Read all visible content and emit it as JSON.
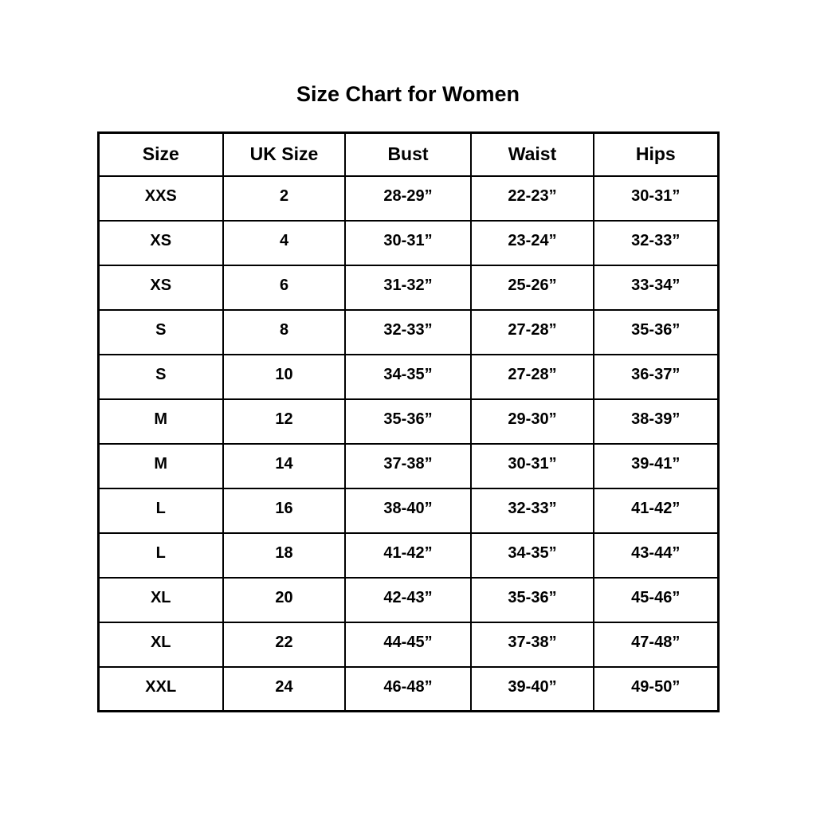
{
  "title": "Size Chart for Women",
  "table": {
    "columns": [
      "Size",
      "UK Size",
      "Bust",
      "Waist",
      "Hips"
    ],
    "rows": [
      [
        "XXS",
        "2",
        "28-29”",
        "22-23”",
        "30-31”"
      ],
      [
        "XS",
        "4",
        "30-31”",
        "23-24”",
        "32-33”"
      ],
      [
        "XS",
        "6",
        "31-32”",
        "25-26”",
        "33-34”"
      ],
      [
        "S",
        "8",
        "32-33”",
        "27-28”",
        "35-36”"
      ],
      [
        "S",
        "10",
        "34-35”",
        "27-28”",
        "36-37”"
      ],
      [
        "M",
        "12",
        "35-36”",
        "29-30”",
        "38-39”"
      ],
      [
        "M",
        "14",
        "37-38”",
        "30-31”",
        "39-41”"
      ],
      [
        "L",
        "16",
        "38-40”",
        "32-33”",
        "41-42”"
      ],
      [
        "L",
        "18",
        "41-42”",
        "34-35”",
        "43-44”"
      ],
      [
        "XL",
        "20",
        "42-43”",
        "35-36”",
        "45-46”"
      ],
      [
        "XL",
        "22",
        "44-45”",
        "37-38”",
        "47-48”"
      ],
      [
        "XXL",
        "24",
        "46-48”",
        "39-40”",
        "49-50”"
      ]
    ]
  },
  "chart_data": {
    "type": "table",
    "title": "Size Chart for Women",
    "columns": [
      "Size",
      "UK Size",
      "Bust",
      "Waist",
      "Hips"
    ],
    "rows": [
      [
        "XXS",
        "2",
        "28-29”",
        "22-23”",
        "30-31”"
      ],
      [
        "XS",
        "4",
        "30-31”",
        "23-24”",
        "32-33”"
      ],
      [
        "XS",
        "6",
        "31-32”",
        "25-26”",
        "33-34”"
      ],
      [
        "S",
        "8",
        "32-33”",
        "27-28”",
        "35-36”"
      ],
      [
        "S",
        "10",
        "34-35”",
        "27-28”",
        "36-37”"
      ],
      [
        "M",
        "12",
        "35-36”",
        "29-30”",
        "38-39”"
      ],
      [
        "M",
        "14",
        "37-38”",
        "30-31”",
        "39-41”"
      ],
      [
        "L",
        "16",
        "38-40”",
        "32-33”",
        "41-42”"
      ],
      [
        "L",
        "18",
        "41-42”",
        "34-35”",
        "43-44”"
      ],
      [
        "XL",
        "20",
        "42-43”",
        "35-36”",
        "45-46”"
      ],
      [
        "XL",
        "22",
        "44-45”",
        "37-38”",
        "47-48”"
      ],
      [
        "XXL",
        "24",
        "46-48”",
        "39-40”",
        "49-50”"
      ]
    ],
    "layout": {
      "grid": true,
      "title_position": "top-center"
    }
  },
  "colors": {
    "background": "#ffffff",
    "border": "#000000",
    "text": "#000000"
  }
}
